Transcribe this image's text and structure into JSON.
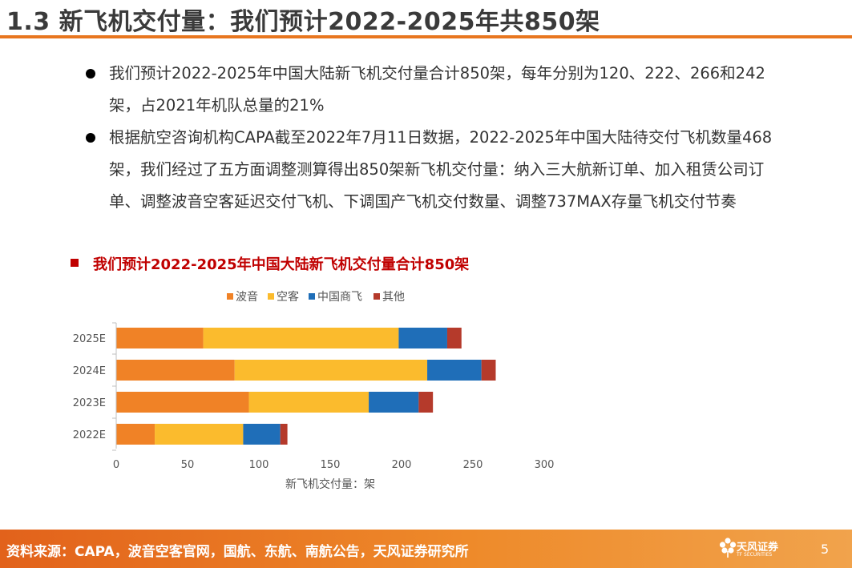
{
  "header": {
    "title": "1.3 新飞机交付量：我们预计2022-2025年共850架"
  },
  "bullets": [
    "我们预计2022-2025年中国大陆新飞机交付量合计850架，每年分别为120、222、266和242架，占2021年机队总量的21%",
    "根据航空咨询机构CAPA截至2022年7月11日数据，2022-2025年中国大陆待交付飞机数量468架，我们经过了五方面调整测算得出850架新飞机交付量：纳入三大航新订单、加入租赁公司订单、调整波音空客延迟交付飞机、下调国产飞机交付数量、调整737MAX存量飞机交付节奏"
  ],
  "chart_heading": "我们预计2022-2025年中国大陆新飞机交付量合计850架",
  "chart_data": {
    "type": "bar",
    "orientation": "horizontal",
    "stacked": true,
    "title": "我们预计2022-2025年中国大陆新飞机交付量合计850架",
    "categories": [
      "2025E",
      "2024E",
      "2023E",
      "2022E"
    ],
    "series": [
      {
        "name": "波音",
        "color": "#f08226",
        "values": [
          61,
          83,
          93,
          27
        ]
      },
      {
        "name": "空客",
        "color": "#fbbb2d",
        "values": [
          137,
          135,
          84,
          62
        ]
      },
      {
        "name": "中国商飞",
        "color": "#1f6eb8",
        "values": [
          34,
          38,
          35,
          26
        ]
      },
      {
        "name": "其他",
        "color": "#b53a2b",
        "values": [
          10,
          10,
          10,
          5
        ]
      }
    ],
    "xticks": [
      "0",
      "50",
      "100",
      "150",
      "200",
      "250",
      "300"
    ],
    "xlim": [
      0,
      300
    ],
    "xlabel": "新飞机交付量：架",
    "ylabel": "",
    "legend_position": "top",
    "grid": false
  },
  "footer": {
    "source": "资料来源：CAPA，波音空客官网，国航、东航、南航公告，天风证券研究所",
    "logo_name": "天风证券",
    "logo_sub": "TF SECURITIES",
    "page_number": "5"
  }
}
